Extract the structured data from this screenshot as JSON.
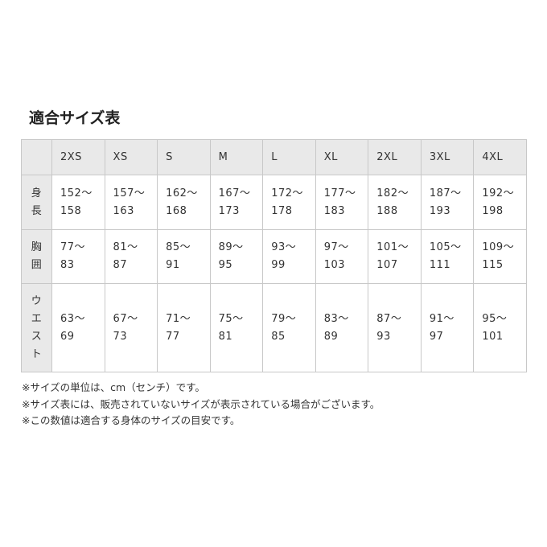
{
  "title": "適合サイズ表",
  "table": {
    "columns": [
      "2XS",
      "XS",
      "S",
      "M",
      "L",
      "XL",
      "2XL",
      "3XL",
      "4XL"
    ],
    "rows": [
      {
        "label": "身長",
        "values": [
          [
            "152〜",
            "158"
          ],
          [
            "157〜",
            "163"
          ],
          [
            "162〜",
            "168"
          ],
          [
            "167〜",
            "173"
          ],
          [
            "172〜",
            "178"
          ],
          [
            "177〜",
            "183"
          ],
          [
            "182〜",
            "188"
          ],
          [
            "187〜",
            "193"
          ],
          [
            "192〜",
            "198"
          ]
        ]
      },
      {
        "label": "胸囲",
        "values": [
          [
            "77〜",
            "83"
          ],
          [
            "81〜",
            "87"
          ],
          [
            "85〜",
            "91"
          ],
          [
            "89〜",
            "95"
          ],
          [
            "93〜",
            "99"
          ],
          [
            "97〜",
            "103"
          ],
          [
            "101〜",
            "107"
          ],
          [
            "105〜",
            "111"
          ],
          [
            "109〜",
            "115"
          ]
        ]
      },
      {
        "label": "ウエスト",
        "values": [
          [
            "63〜",
            "69"
          ],
          [
            "67〜",
            "73"
          ],
          [
            "71〜",
            "77"
          ],
          [
            "75〜",
            "81"
          ],
          [
            "79〜",
            "85"
          ],
          [
            "83〜",
            "89"
          ],
          [
            "87〜",
            "93"
          ],
          [
            "91〜",
            "97"
          ],
          [
            "95〜",
            "101"
          ]
        ]
      }
    ]
  },
  "notes": [
    "※サイズの単位は、cm（センチ）です。",
    "※サイズ表には、販売されていないサイズが表示されている場合がございます。",
    "※この数値は適合する身体のサイズの目安です。"
  ],
  "colors": {
    "header_bg": "#e9e9e9",
    "border": "#c8c8c8"
  }
}
